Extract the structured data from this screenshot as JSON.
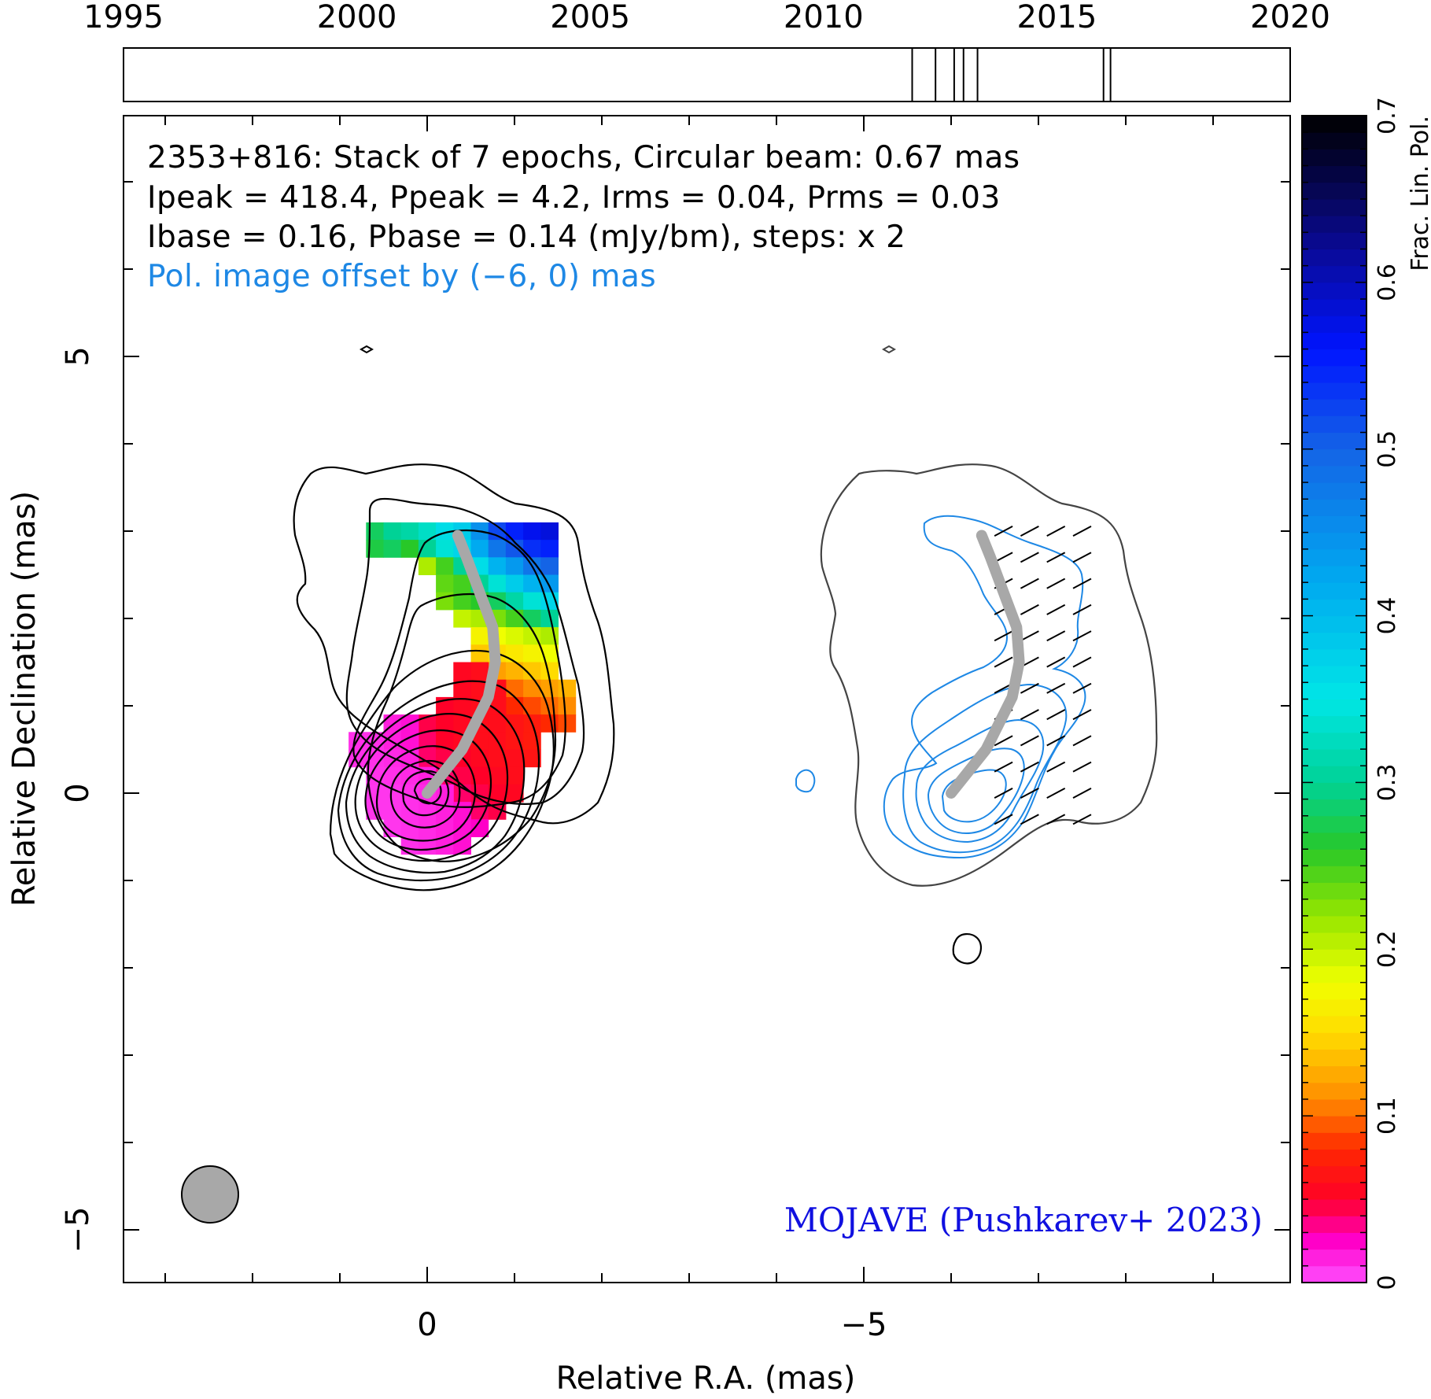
{
  "chart_data": {
    "type": "heatmap",
    "timeline": {
      "year_ticks": [
        "1995",
        "2000",
        "2005",
        "2010",
        "2015",
        "2020"
      ],
      "xlim": [
        1995,
        2020
      ],
      "epoch_years": [
        2011.9,
        2012.4,
        2012.8,
        2013.0,
        2013.3,
        2016.0,
        2016.15
      ]
    },
    "annotation": {
      "line1": "2353+816: Stack of 7 epochs, Circular beam: 0.67 mas",
      "line2": "Ipeak = 418.4, Ppeak = 4.2, Irms = 0.04, Prms = 0.03",
      "line3": "Ibase = 0.16, Pbase = 0.14 (mJy/bm), steps: x 2",
      "line4": "Pol. image offset by (−6, 0) mas"
    },
    "xlabel": "Relative R.A. (mas)",
    "ylabel": "Relative Declination (mas)",
    "xlim": [
      3.5,
      -9.9
    ],
    "ylim": [
      -5.6,
      7.8
    ],
    "x_ticks": [
      {
        "value": 0,
        "label": "0"
      },
      {
        "value": -5,
        "label": "−5"
      }
    ],
    "y_ticks": [
      {
        "value": 5,
        "label": "5"
      },
      {
        "value": 0,
        "label": "0"
      },
      {
        "value": -5,
        "label": "−5"
      }
    ],
    "colorbar": {
      "label": "Frac. Lin. Pol.",
      "range": [
        0,
        0.7
      ],
      "ticks": [
        "0",
        "0.1",
        "0.2",
        "0.3",
        "0.4",
        "0.5",
        "0.6",
        "0.7"
      ]
    },
    "beam_mas": 0.67,
    "credit": "MOJAVE (Pushkarev+ 2023)",
    "colors": {
      "pol_contour": "#1e88e5",
      "ridge": "#a8a8a8",
      "credit": "#1010e0",
      "annotation_blue": "#1e88e5"
    },
    "frac_pol_pixels": [
      {
        "ra": 0.6,
        "dec": 3.0,
        "m": 0.28
      },
      {
        "ra": 0.4,
        "dec": 3.0,
        "m": 0.3
      },
      {
        "ra": 0.2,
        "dec": 3.0,
        "m": 0.31
      },
      {
        "ra": 0.0,
        "dec": 3.0,
        "m": 0.33
      },
      {
        "ra": -0.2,
        "dec": 3.0,
        "m": 0.36
      },
      {
        "ra": -0.4,
        "dec": 3.0,
        "m": 0.38
      },
      {
        "ra": -0.6,
        "dec": 3.0,
        "m": 0.45
      },
      {
        "ra": -0.8,
        "dec": 3.0,
        "m": 0.52
      },
      {
        "ra": -1.0,
        "dec": 3.0,
        "m": 0.55
      },
      {
        "ra": -1.2,
        "dec": 3.0,
        "m": 0.57
      },
      {
        "ra": -1.4,
        "dec": 3.0,
        "m": 0.58
      },
      {
        "ra": 0.6,
        "dec": 2.8,
        "m": 0.27
      },
      {
        "ra": 0.4,
        "dec": 2.8,
        "m": 0.28
      },
      {
        "ra": 0.2,
        "dec": 2.8,
        "m": 0.26
      },
      {
        "ra": 0.0,
        "dec": 2.8,
        "m": 0.3
      },
      {
        "ra": -0.2,
        "dec": 2.8,
        "m": 0.34
      },
      {
        "ra": -0.4,
        "dec": 2.8,
        "m": 0.37
      },
      {
        "ra": -0.6,
        "dec": 2.8,
        "m": 0.42
      },
      {
        "ra": -0.8,
        "dec": 2.8,
        "m": 0.48
      },
      {
        "ra": -1.0,
        "dec": 2.8,
        "m": 0.51
      },
      {
        "ra": -1.2,
        "dec": 2.8,
        "m": 0.54
      },
      {
        "ra": -1.4,
        "dec": 2.8,
        "m": 0.55
      },
      {
        "ra": 0.0,
        "dec": 2.6,
        "m": 0.21
      },
      {
        "ra": -0.2,
        "dec": 2.6,
        "m": 0.25
      },
      {
        "ra": -0.4,
        "dec": 2.6,
        "m": 0.3
      },
      {
        "ra": -0.6,
        "dec": 2.6,
        "m": 0.36
      },
      {
        "ra": -0.8,
        "dec": 2.6,
        "m": 0.41
      },
      {
        "ra": -1.0,
        "dec": 2.6,
        "m": 0.44
      },
      {
        "ra": -1.2,
        "dec": 2.6,
        "m": 0.48
      },
      {
        "ra": -1.4,
        "dec": 2.6,
        "m": 0.5
      },
      {
        "ra": -0.2,
        "dec": 2.4,
        "m": 0.24
      },
      {
        "ra": -0.4,
        "dec": 2.4,
        "m": 0.25
      },
      {
        "ra": -0.6,
        "dec": 2.4,
        "m": 0.3
      },
      {
        "ra": -0.8,
        "dec": 2.4,
        "m": 0.34
      },
      {
        "ra": -1.0,
        "dec": 2.4,
        "m": 0.38
      },
      {
        "ra": -1.2,
        "dec": 2.4,
        "m": 0.41
      },
      {
        "ra": -1.4,
        "dec": 2.4,
        "m": 0.44
      },
      {
        "ra": -0.2,
        "dec": 2.2,
        "m": 0.23
      },
      {
        "ra": -0.4,
        "dec": 2.2,
        "m": 0.25
      },
      {
        "ra": -0.6,
        "dec": 2.2,
        "m": 0.26
      },
      {
        "ra": -0.8,
        "dec": 2.2,
        "m": 0.28
      },
      {
        "ra": -1.0,
        "dec": 2.2,
        "m": 0.31
      },
      {
        "ra": -1.2,
        "dec": 2.2,
        "m": 0.34
      },
      {
        "ra": -1.4,
        "dec": 2.2,
        "m": 0.37
      },
      {
        "ra": -0.4,
        "dec": 2.0,
        "m": 0.2
      },
      {
        "ra": -0.6,
        "dec": 2.0,
        "m": 0.21
      },
      {
        "ra": -0.8,
        "dec": 2.0,
        "m": 0.23
      },
      {
        "ra": -1.0,
        "dec": 2.0,
        "m": 0.25
      },
      {
        "ra": -1.2,
        "dec": 2.0,
        "m": 0.28
      },
      {
        "ra": -1.4,
        "dec": 2.0,
        "m": 0.3
      },
      {
        "ra": -0.6,
        "dec": 1.8,
        "m": 0.17
      },
      {
        "ra": -0.8,
        "dec": 1.8,
        "m": 0.18
      },
      {
        "ra": -1.0,
        "dec": 1.8,
        "m": 0.19
      },
      {
        "ra": -1.2,
        "dec": 1.8,
        "m": 0.2
      },
      {
        "ra": -1.4,
        "dec": 1.8,
        "m": 0.21
      },
      {
        "ra": -0.6,
        "dec": 1.6,
        "m": 0.14
      },
      {
        "ra": -0.8,
        "dec": 1.6,
        "m": 0.15
      },
      {
        "ra": -1.0,
        "dec": 1.6,
        "m": 0.16
      },
      {
        "ra": -1.2,
        "dec": 1.6,
        "m": 0.17
      },
      {
        "ra": -1.4,
        "dec": 1.6,
        "m": 0.18
      },
      {
        "ra": -0.8,
        "dec": 1.4,
        "m": 0.12
      },
      {
        "ra": -1.0,
        "dec": 1.4,
        "m": 0.13
      },
      {
        "ra": -1.2,
        "dec": 1.4,
        "m": 0.14
      },
      {
        "ra": -1.4,
        "dec": 1.4,
        "m": 0.15
      },
      {
        "ra": -1.0,
        "dec": 1.2,
        "m": 0.1
      },
      {
        "ra": -1.2,
        "dec": 1.2,
        "m": 0.11
      },
      {
        "ra": -1.4,
        "dec": 1.2,
        "m": 0.12
      },
      {
        "ra": -1.6,
        "dec": 1.2,
        "m": 0.13
      },
      {
        "ra": -1.0,
        "dec": 1.0,
        "m": 0.08
      },
      {
        "ra": -1.2,
        "dec": 1.0,
        "m": 0.09
      },
      {
        "ra": -1.4,
        "dec": 1.0,
        "m": 0.1
      },
      {
        "ra": -1.6,
        "dec": 1.0,
        "m": 0.11
      },
      {
        "ra": -1.2,
        "dec": 0.8,
        "m": 0.07
      },
      {
        "ra": -1.4,
        "dec": 0.8,
        "m": 0.08
      },
      {
        "ra": -1.6,
        "dec": 0.8,
        "m": 0.09
      },
      {
        "ra": -0.6,
        "dec": 1.4,
        "m": 0.06
      },
      {
        "ra": -0.4,
        "dec": 1.4,
        "m": 0.055
      },
      {
        "ra": -0.6,
        "dec": 1.2,
        "m": 0.06
      },
      {
        "ra": -0.4,
        "dec": 1.2,
        "m": 0.055
      },
      {
        "ra": -0.8,
        "dec": 1.2,
        "m": 0.06
      },
      {
        "ra": -0.2,
        "dec": 1.0,
        "m": 0.05
      },
      {
        "ra": -0.4,
        "dec": 1.0,
        "m": 0.055
      },
      {
        "ra": -0.6,
        "dec": 1.0,
        "m": 0.06
      },
      {
        "ra": -0.8,
        "dec": 1.0,
        "m": 0.06
      },
      {
        "ra": 0.0,
        "dec": 0.8,
        "m": 0.045
      },
      {
        "ra": -0.2,
        "dec": 0.8,
        "m": 0.05
      },
      {
        "ra": -0.4,
        "dec": 0.8,
        "m": 0.055
      },
      {
        "ra": -0.6,
        "dec": 0.8,
        "m": 0.06
      },
      {
        "ra": -0.8,
        "dec": 0.8,
        "m": 0.06
      },
      {
        "ra": -1.0,
        "dec": 0.8,
        "m": 0.065
      },
      {
        "ra": 0.0,
        "dec": 0.6,
        "m": 0.04
      },
      {
        "ra": -0.2,
        "dec": 0.6,
        "m": 0.05
      },
      {
        "ra": -0.4,
        "dec": 0.6,
        "m": 0.055
      },
      {
        "ra": -0.6,
        "dec": 0.6,
        "m": 0.06
      },
      {
        "ra": -0.8,
        "dec": 0.6,
        "m": 0.06
      },
      {
        "ra": -1.0,
        "dec": 0.6,
        "m": 0.065
      },
      {
        "ra": -1.2,
        "dec": 0.6,
        "m": 0.07
      },
      {
        "ra": 0.0,
        "dec": 0.4,
        "m": 0.04
      },
      {
        "ra": -0.2,
        "dec": 0.4,
        "m": 0.045
      },
      {
        "ra": -0.4,
        "dec": 0.4,
        "m": 0.05
      },
      {
        "ra": -0.6,
        "dec": 0.4,
        "m": 0.055
      },
      {
        "ra": -0.8,
        "dec": 0.4,
        "m": 0.06
      },
      {
        "ra": -1.0,
        "dec": 0.4,
        "m": 0.06
      },
      {
        "ra": -1.2,
        "dec": 0.4,
        "m": 0.065
      },
      {
        "ra": -0.2,
        "dec": 0.2,
        "m": 0.04
      },
      {
        "ra": -0.4,
        "dec": 0.2,
        "m": 0.045
      },
      {
        "ra": -0.6,
        "dec": 0.2,
        "m": 0.05
      },
      {
        "ra": -0.8,
        "dec": 0.2,
        "m": 0.055
      },
      {
        "ra": -1.0,
        "dec": 0.2,
        "m": 0.06
      },
      {
        "ra": -0.4,
        "dec": 0.0,
        "m": 0.04
      },
      {
        "ra": -0.6,
        "dec": 0.0,
        "m": 0.045
      },
      {
        "ra": -0.8,
        "dec": 0.0,
        "m": 0.05
      },
      {
        "ra": -1.0,
        "dec": 0.0,
        "m": 0.055
      },
      {
        "ra": -0.6,
        "dec": -0.2,
        "m": 0.04
      },
      {
        "ra": -0.8,
        "dec": -0.2,
        "m": 0.045
      },
      {
        "ra": 0.4,
        "dec": 0.8,
        "m": 0.015
      },
      {
        "ra": 0.2,
        "dec": 0.8,
        "m": 0.02
      },
      {
        "ra": 0.4,
        "dec": 0.6,
        "m": 0.015
      },
      {
        "ra": 0.2,
        "dec": 0.6,
        "m": 0.02
      },
      {
        "ra": 0.6,
        "dec": 0.6,
        "m": 0.01
      },
      {
        "ra": 0.8,
        "dec": 0.6,
        "m": 0.01
      },
      {
        "ra": 0.4,
        "dec": 0.4,
        "m": 0.012
      },
      {
        "ra": 0.2,
        "dec": 0.4,
        "m": 0.015
      },
      {
        "ra": 0.6,
        "dec": 0.4,
        "m": 0.01
      },
      {
        "ra": 0.8,
        "dec": 0.4,
        "m": 0.01
      },
      {
        "ra": 0.4,
        "dec": 0.2,
        "m": 0.01
      },
      {
        "ra": 0.2,
        "dec": 0.2,
        "m": 0.012
      },
      {
        "ra": 0.0,
        "dec": 0.2,
        "m": 0.015
      },
      {
        "ra": 0.4,
        "dec": 0.0,
        "m": 0.008
      },
      {
        "ra": 0.2,
        "dec": 0.0,
        "m": 0.01
      },
      {
        "ra": 0.0,
        "dec": 0.0,
        "m": 0.012
      },
      {
        "ra": -0.2,
        "dec": 0.0,
        "m": 0.015
      },
      {
        "ra": 0.4,
        "dec": -0.2,
        "m": 0.008
      },
      {
        "ra": 0.2,
        "dec": -0.2,
        "m": 0.01
      },
      {
        "ra": 0.0,
        "dec": -0.2,
        "m": 0.012
      },
      {
        "ra": -0.2,
        "dec": -0.2,
        "m": 0.015
      },
      {
        "ra": -0.4,
        "dec": -0.2,
        "m": 0.02
      },
      {
        "ra": 0.4,
        "dec": -0.4,
        "m": 0.008
      },
      {
        "ra": 0.2,
        "dec": -0.4,
        "m": 0.01
      },
      {
        "ra": 0.0,
        "dec": -0.4,
        "m": 0.012
      },
      {
        "ra": -0.2,
        "dec": -0.4,
        "m": 0.015
      },
      {
        "ra": -0.4,
        "dec": -0.4,
        "m": 0.02
      },
      {
        "ra": -0.6,
        "dec": -0.4,
        "m": 0.025
      },
      {
        "ra": 0.2,
        "dec": -0.6,
        "m": 0.01
      },
      {
        "ra": 0.0,
        "dec": -0.6,
        "m": 0.012
      },
      {
        "ra": -0.2,
        "dec": -0.6,
        "m": 0.015
      },
      {
        "ra": -0.4,
        "dec": -0.6,
        "m": 0.02
      },
      {
        "ra": 0.6,
        "dec": -0.2,
        "m": 0.008
      },
      {
        "ra": 0.6,
        "dec": 0.0,
        "m": 0.008
      },
      {
        "ra": 0.6,
        "dec": 0.2,
        "m": 0.009
      }
    ],
    "ridge_line": [
      {
        "ra": 0.0,
        "dec": 0.0
      },
      {
        "ra": -0.2,
        "dec": 0.25
      },
      {
        "ra": -0.4,
        "dec": 0.5
      },
      {
        "ra": -0.55,
        "dec": 0.8
      },
      {
        "ra": -0.7,
        "dec": 1.1
      },
      {
        "ra": -0.78,
        "dec": 1.5
      },
      {
        "ra": -0.75,
        "dec": 1.9
      },
      {
        "ra": -0.6,
        "dec": 2.3
      },
      {
        "ra": -0.45,
        "dec": 2.7
      },
      {
        "ra": -0.35,
        "dec": 2.95
      }
    ]
  }
}
